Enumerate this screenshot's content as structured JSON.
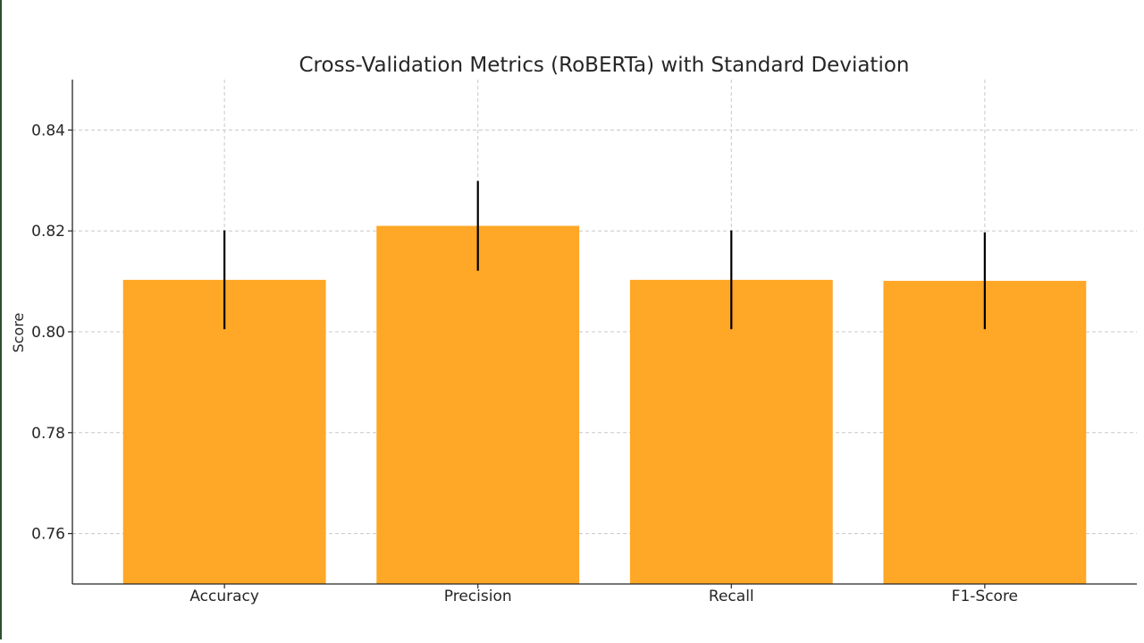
{
  "chart_data": {
    "type": "bar",
    "title": "Cross-Validation Metrics (RoBERTa) with Standard Deviation",
    "xlabel": "",
    "ylabel": "Score",
    "categories": [
      "Accuracy",
      "Precision",
      "Recall",
      "F1-Score"
    ],
    "values": [
      0.8103,
      0.821,
      0.8103,
      0.8101
    ],
    "error": [
      0.0098,
      0.0089,
      0.0098,
      0.0096
    ],
    "ylim": [
      0.75,
      0.85
    ],
    "yticks": [
      0.76,
      0.78,
      0.8,
      0.82,
      0.84
    ],
    "ytick_labels": [
      "0.76",
      "0.78",
      "0.80",
      "0.82",
      "0.84"
    ],
    "grid": true,
    "bar_color": "#ffa726",
    "error_color": "#000000"
  }
}
